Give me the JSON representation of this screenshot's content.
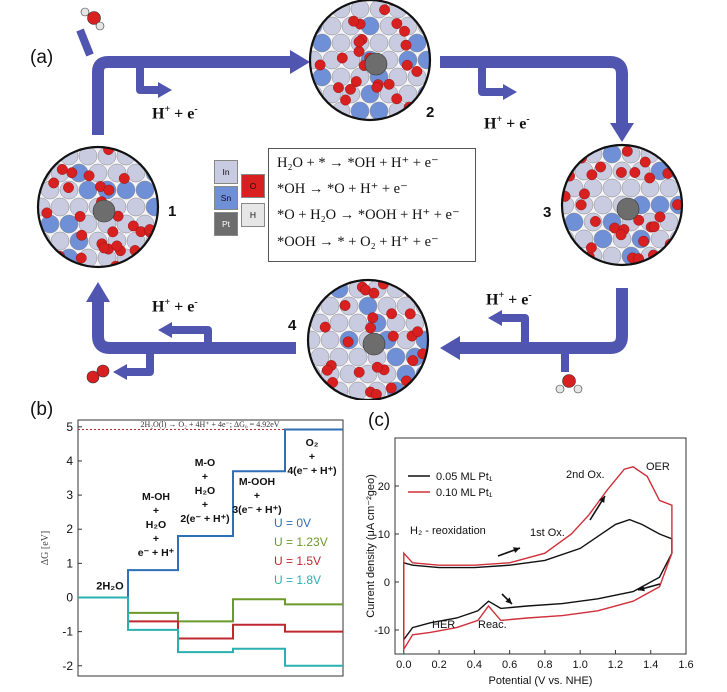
{
  "panels": {
    "a": "(a)",
    "b": "(b)",
    "c": "(c)"
  },
  "panel_a": {
    "sites": [
      "1",
      "2",
      "3",
      "4"
    ],
    "proton_electron": "H+ + e-",
    "legend": [
      {
        "symbol": "In",
        "color": "#c9cbe0",
        "label": "In"
      },
      {
        "symbol": "Sn",
        "color": "#6f8fd6",
        "label": "Sn"
      },
      {
        "symbol": "Pt",
        "color": "#6d6d6d",
        "label": "Pt"
      },
      {
        "symbol": "O",
        "color": "#d92020",
        "label": "O"
      },
      {
        "symbol": "H",
        "color": "#e6e6e6",
        "label": "H"
      }
    ],
    "reactions": [
      "H₂O + * → *OH + H⁺ + e⁻",
      "*OH → *O + H⁺ + e⁻",
      "*O + H₂O → *OOH + H⁺ + e⁻",
      "*OOH → * + O₂ + H⁺ + e⁻"
    ],
    "arrow_color": "#5056b0"
  },
  "panel_b": {
    "header": "2H₂O(l) → O₂ + 4H⁺ + 4e⁻;   ΔG₀ = 4.92eV",
    "ylabel": "ΔG [eV]",
    "yticks": [
      "5",
      "4",
      "3",
      "2",
      "1",
      "0",
      "-1",
      "-2"
    ],
    "step_labels": {
      "s0": "2H₂O",
      "s1": [
        "M-OH",
        "+",
        "H₂O",
        "+",
        "e⁻ + H⁺"
      ],
      "s2": [
        "M-O",
        "+",
        "H₂O",
        "+",
        "2(e⁻ + H⁺)"
      ],
      "s3": [
        "M-OOH",
        "+",
        "3(e⁻ + H⁺)"
      ],
      "s4": [
        "O₂",
        "+",
        "4(e⁻ + H⁺)"
      ]
    },
    "potentials": [
      {
        "label": "U = 0V",
        "color": "#2f6fb5"
      },
      {
        "label": "U = 1.23V",
        "color": "#6b9a2a"
      },
      {
        "label": "U = 1.5V",
        "color": "#c02830"
      },
      {
        "label": "U = 1.8V",
        "color": "#2ab0b0"
      }
    ]
  },
  "panel_c": {
    "ylabel": "Current density (μA cm⁻²geo)",
    "xlabel": "Potential (V vs. NHE)",
    "xticks": [
      "0.0",
      "0.2",
      "0.4",
      "0.6",
      "0.8",
      "1.0",
      "1.2",
      "1.4",
      "1.6"
    ],
    "yticks": [
      "20",
      "10",
      "0",
      "-10"
    ],
    "legend": [
      {
        "label": "0.05 ML Pt₁",
        "color": "#111111"
      },
      {
        "label": "0.10 ML Pt₁",
        "color": "#d0303a"
      }
    ],
    "annotations": {
      "h2_reox": "H₂ - reoxidation",
      "first_ox": "1st Ox.",
      "second_ox": "2nd Ox.",
      "oer": "OER",
      "her": "HER",
      "reac": "Reac."
    }
  },
  "chart_data": [
    {
      "type": "line",
      "title": "",
      "ylabel": "ΔG [eV]",
      "xlabel": "",
      "ylim": [
        -2.3,
        5.2
      ],
      "equilibrium_line": 4.92,
      "steps": [
        "2H₂O",
        "M-OH",
        "M-O",
        "M-OOH",
        "O₂"
      ],
      "series": [
        {
          "name": "U = 0V",
          "values": [
            0,
            0.8,
            1.8,
            3.7,
            4.92
          ]
        },
        {
          "name": "U = 1.23V",
          "values": [
            0,
            -0.45,
            -0.7,
            -0.05,
            -0.2
          ]
        },
        {
          "name": "U = 1.5V",
          "values": [
            0,
            -0.7,
            -1.2,
            -0.8,
            -1.0
          ]
        },
        {
          "name": "U = 1.8V",
          "values": [
            0,
            -0.95,
            -1.6,
            -1.5,
            -2.0
          ]
        }
      ]
    },
    {
      "type": "line",
      "title": "",
      "xlabel": "Potential (V vs. NHE)",
      "ylabel": "Current density (μA cm⁻²geo)",
      "xlim": [
        -0.05,
        1.6
      ],
      "ylim": [
        -15,
        30
      ],
      "series": [
        {
          "name": "0.05 ML Pt₁",
          "anodic": [
            [
              0.0,
              4
            ],
            [
              0.05,
              3.5
            ],
            [
              0.2,
              3
            ],
            [
              0.4,
              3
            ],
            [
              0.6,
              3.5
            ],
            [
              0.8,
              4.5
            ],
            [
              1.0,
              7
            ],
            [
              1.1,
              9.5
            ],
            [
              1.2,
              12
            ],
            [
              1.28,
              13
            ],
            [
              1.35,
              12
            ],
            [
              1.45,
              10
            ],
            [
              1.52,
              9
            ]
          ],
          "cathodic": [
            [
              1.52,
              6
            ],
            [
              1.45,
              1
            ],
            [
              1.3,
              -2
            ],
            [
              1.1,
              -3.5
            ],
            [
              0.9,
              -4.5
            ],
            [
              0.7,
              -5
            ],
            [
              0.55,
              -5.5
            ],
            [
              0.48,
              -4
            ],
            [
              0.42,
              -6
            ],
            [
              0.3,
              -7.5
            ],
            [
              0.15,
              -8.5
            ],
            [
              0.05,
              -9.5
            ],
            [
              0.0,
              -12
            ]
          ]
        },
        {
          "name": "0.10 ML Pt₁",
          "anodic": [
            [
              0.0,
              6
            ],
            [
              0.05,
              4
            ],
            [
              0.2,
              3.5
            ],
            [
              0.4,
              3.5
            ],
            [
              0.6,
              4
            ],
            [
              0.8,
              6
            ],
            [
              0.95,
              10
            ],
            [
              1.05,
              14
            ],
            [
              1.15,
              19
            ],
            [
              1.25,
              23.5
            ],
            [
              1.3,
              24
            ],
            [
              1.38,
              22
            ],
            [
              1.45,
              17
            ],
            [
              1.52,
              16
            ]
          ],
          "cathodic": [
            [
              1.52,
              6
            ],
            [
              1.45,
              -1
            ],
            [
              1.3,
              -4
            ],
            [
              1.1,
              -6
            ],
            [
              0.9,
              -7
            ],
            [
              0.7,
              -7.5
            ],
            [
              0.55,
              -8
            ],
            [
              0.48,
              -5
            ],
            [
              0.42,
              -8
            ],
            [
              0.3,
              -9.5
            ],
            [
              0.15,
              -10.5
            ],
            [
              0.05,
              -11
            ],
            [
              0.0,
              -14
            ]
          ]
        }
      ]
    }
  ]
}
